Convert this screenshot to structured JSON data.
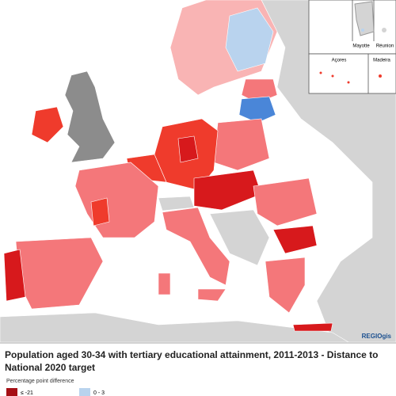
{
  "map": {
    "title": "Population aged 30-34 with tertiary educational attainment, 2011-2013 - Distance to National 2020 target",
    "credit": "REGIOgis",
    "insets": [
      "Mayotte",
      "Réunion",
      "Açores",
      "Madeira"
    ],
    "legend": {
      "title": "Percentage point difference",
      "items": [
        "≤ -21",
        "0 - 3"
      ]
    }
  }
}
